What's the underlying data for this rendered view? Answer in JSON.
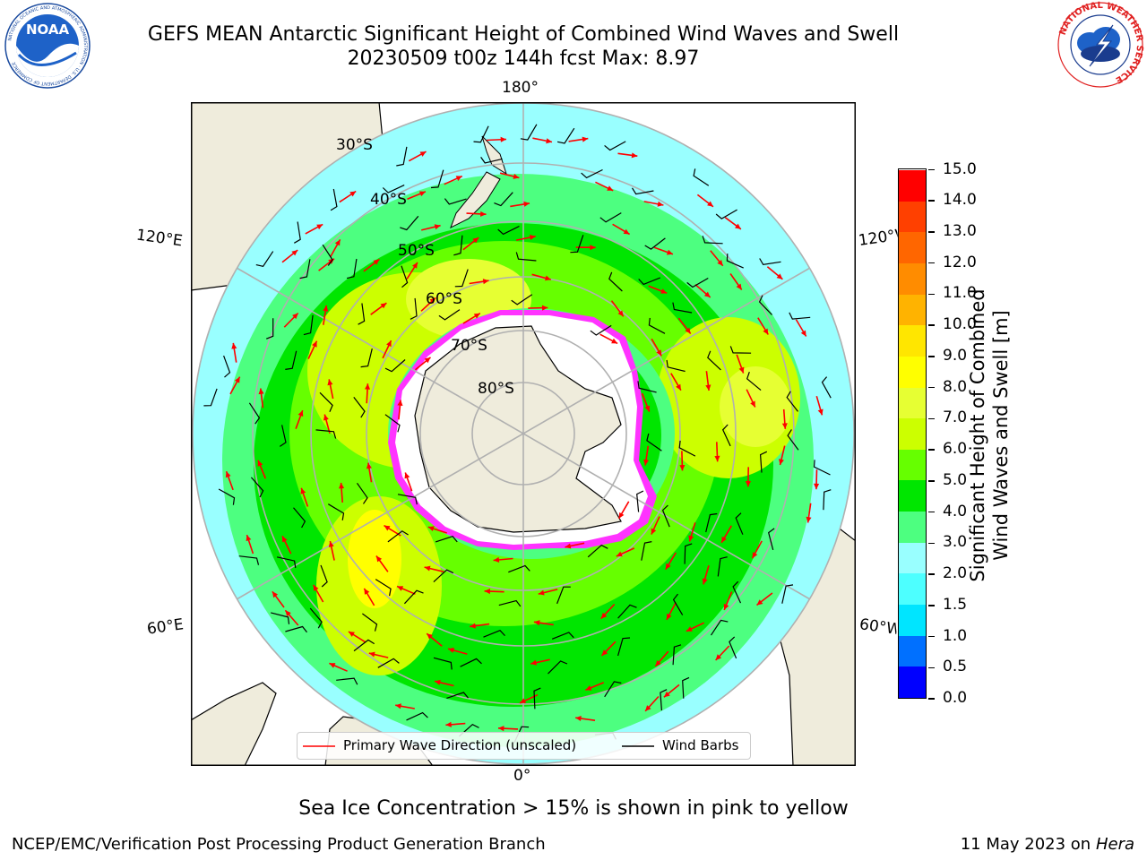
{
  "header": {
    "title": "GEFS MEAN Antarctic Significant Height of Combined Wind Waves and Swell",
    "subtitle": "20230509 t00z 144h fcst   Max: 8.97"
  },
  "logos": {
    "left": {
      "name": "NOAA",
      "ring_text": "NATIONAL OCEANIC AND ATMOSPHERIC ADMINISTRATION · U.S. DEPARTMENT OF COMMERCE"
    },
    "right": {
      "ring_text": "NATIONAL WEATHER SERVICE"
    }
  },
  "map": {
    "projection": "south-polar-stereographic",
    "lon_labels": {
      "top": "180°",
      "bottom": "0°",
      "upper_left": "120°E",
      "upper_right": "120°W",
      "lower_left": "60°E",
      "lower_right": "60°W"
    },
    "lat_labels": [
      "30°S",
      "40°S",
      "50°S",
      "60°S",
      "70°S",
      "80°S"
    ],
    "colors": {
      "land": "#efecdc",
      "ice_shelf": "#ffffff",
      "sea_ice": "#ff33ff",
      "grid": "#b0b0b0",
      "wave_arrow": "#ff0000",
      "barb": "#000000"
    }
  },
  "colorbar": {
    "label_line1": "Significant Height of Combined",
    "label_line2": "Wind Waves and Swell [m]",
    "ticks": [
      "0.0",
      "0.5",
      "1.0",
      "1.5",
      "2.0",
      "3.0",
      "4.0",
      "5.0",
      "6.0",
      "7.0",
      "8.0",
      "9.0",
      "10.0",
      "11.0",
      "12.0",
      "13.0",
      "14.0",
      "15.0"
    ],
    "bins": [
      {
        "from": 0.0,
        "to": 0.5,
        "color": "#0000ff"
      },
      {
        "from": 0.5,
        "to": 1.0,
        "color": "#0070ff"
      },
      {
        "from": 1.0,
        "to": 1.5,
        "color": "#00e5ff"
      },
      {
        "from": 1.5,
        "to": 2.0,
        "color": "#4dffff"
      },
      {
        "from": 2.0,
        "to": 3.0,
        "color": "#99ffff"
      },
      {
        "from": 3.0,
        "to": 4.0,
        "color": "#4dff80"
      },
      {
        "from": 4.0,
        "to": 5.0,
        "color": "#00e600"
      },
      {
        "from": 5.0,
        "to": 6.0,
        "color": "#66ff00"
      },
      {
        "from": 6.0,
        "to": 7.0,
        "color": "#ccff00"
      },
      {
        "from": 7.0,
        "to": 8.0,
        "color": "#e6ff33"
      },
      {
        "from": 8.0,
        "to": 9.0,
        "color": "#ffff00"
      },
      {
        "from": 9.0,
        "to": 10.0,
        "color": "#ffe600"
      },
      {
        "from": 10.0,
        "to": 11.0,
        "color": "#ffb300"
      },
      {
        "from": 11.0,
        "to": 12.0,
        "color": "#ff8c00"
      },
      {
        "from": 12.0,
        "to": 13.0,
        "color": "#ff6600"
      },
      {
        "from": 13.0,
        "to": 14.0,
        "color": "#ff4000"
      },
      {
        "from": 14.0,
        "to": 15.0,
        "color": "#ff0000"
      }
    ]
  },
  "legend": {
    "wave_label": "Primary Wave Direction (unscaled)",
    "barb_label": "Wind Barbs"
  },
  "notes": {
    "sea_ice": "Sea Ice Concentration > 15% is shown in pink to yellow"
  },
  "footer": {
    "left": "NCEP/EMC/Verification Post Processing Product Generation Branch",
    "right_date": "11 May 2023 on",
    "right_machine": "Hera"
  }
}
